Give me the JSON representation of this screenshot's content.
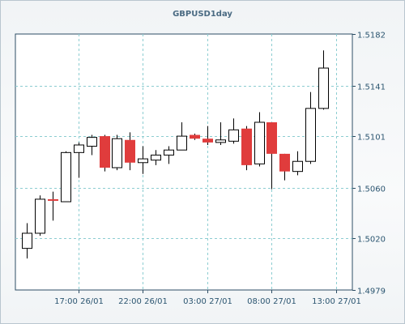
{
  "chart_data": {
    "type": "candlestick",
    "title": "GBPUSD1day",
    "xlabel": "",
    "ylabel": "",
    "ylim": [
      1.4979,
      1.5182
    ],
    "y_ticks": [
      "1.5182",
      "1.5141",
      "1.5101",
      "1.5060",
      "1.5020",
      "1.4979"
    ],
    "x_ticks": [
      "17:00 26/01",
      "22:00 26/01",
      "03:00 27/01",
      "08:00 27/01",
      "13:00 27/01"
    ],
    "grid": true,
    "colors": {
      "up": "#ffffff",
      "down": "#e03c3c",
      "outline": "#000000",
      "grid": "#8ccdd1"
    },
    "candles": [
      {
        "o": 1.5012,
        "h": 1.5032,
        "l": 1.5004,
        "c": 1.5024
      },
      {
        "o": 1.5024,
        "h": 1.5054,
        "l": 1.5022,
        "c": 1.5051
      },
      {
        "o": 1.5051,
        "h": 1.5057,
        "l": 1.5034,
        "c": 1.505
      },
      {
        "o": 1.5049,
        "h": 1.5089,
        "l": 1.5049,
        "c": 1.5088
      },
      {
        "o": 1.5088,
        "h": 1.5096,
        "l": 1.5068,
        "c": 1.5094
      },
      {
        "o": 1.5093,
        "h": 1.5102,
        "l": 1.5086,
        "c": 1.51
      },
      {
        "o": 1.5101,
        "h": 1.5102,
        "l": 1.5073,
        "c": 1.5076
      },
      {
        "o": 1.5076,
        "h": 1.5102,
        "l": 1.5074,
        "c": 1.5099
      },
      {
        "o": 1.5098,
        "h": 1.5104,
        "l": 1.5074,
        "c": 1.508
      },
      {
        "o": 1.508,
        "h": 1.5093,
        "l": 1.5071,
        "c": 1.5083
      },
      {
        "o": 1.5082,
        "h": 1.509,
        "l": 1.5078,
        "c": 1.5086
      },
      {
        "o": 1.5086,
        "h": 1.5093,
        "l": 1.5079,
        "c": 1.509
      },
      {
        "o": 1.509,
        "h": 1.5112,
        "l": 1.509,
        "c": 1.5101
      },
      {
        "o": 1.5102,
        "h": 1.5103,
        "l": 1.5098,
        "c": 1.5099
      },
      {
        "o": 1.5099,
        "h": 1.5109,
        "l": 1.5094,
        "c": 1.5096
      },
      {
        "o": 1.5096,
        "h": 1.5112,
        "l": 1.5094,
        "c": 1.5098
      },
      {
        "o": 1.5097,
        "h": 1.5115,
        "l": 1.5095,
        "c": 1.5106
      },
      {
        "o": 1.5107,
        "h": 1.5109,
        "l": 1.5074,
        "c": 1.5078
      },
      {
        "o": 1.5079,
        "h": 1.512,
        "l": 1.5077,
        "c": 1.5112
      },
      {
        "o": 1.5112,
        "h": 1.5112,
        "l": 1.5059,
        "c": 1.5087
      },
      {
        "o": 1.5087,
        "h": 1.5087,
        "l": 1.5066,
        "c": 1.5073
      },
      {
        "o": 1.5073,
        "h": 1.5089,
        "l": 1.507,
        "c": 1.5081
      },
      {
        "o": 1.5081,
        "h": 1.5136,
        "l": 1.5079,
        "c": 1.5123
      },
      {
        "o": 1.5123,
        "h": 1.5169,
        "l": 1.5122,
        "c": 1.5155
      }
    ]
  }
}
